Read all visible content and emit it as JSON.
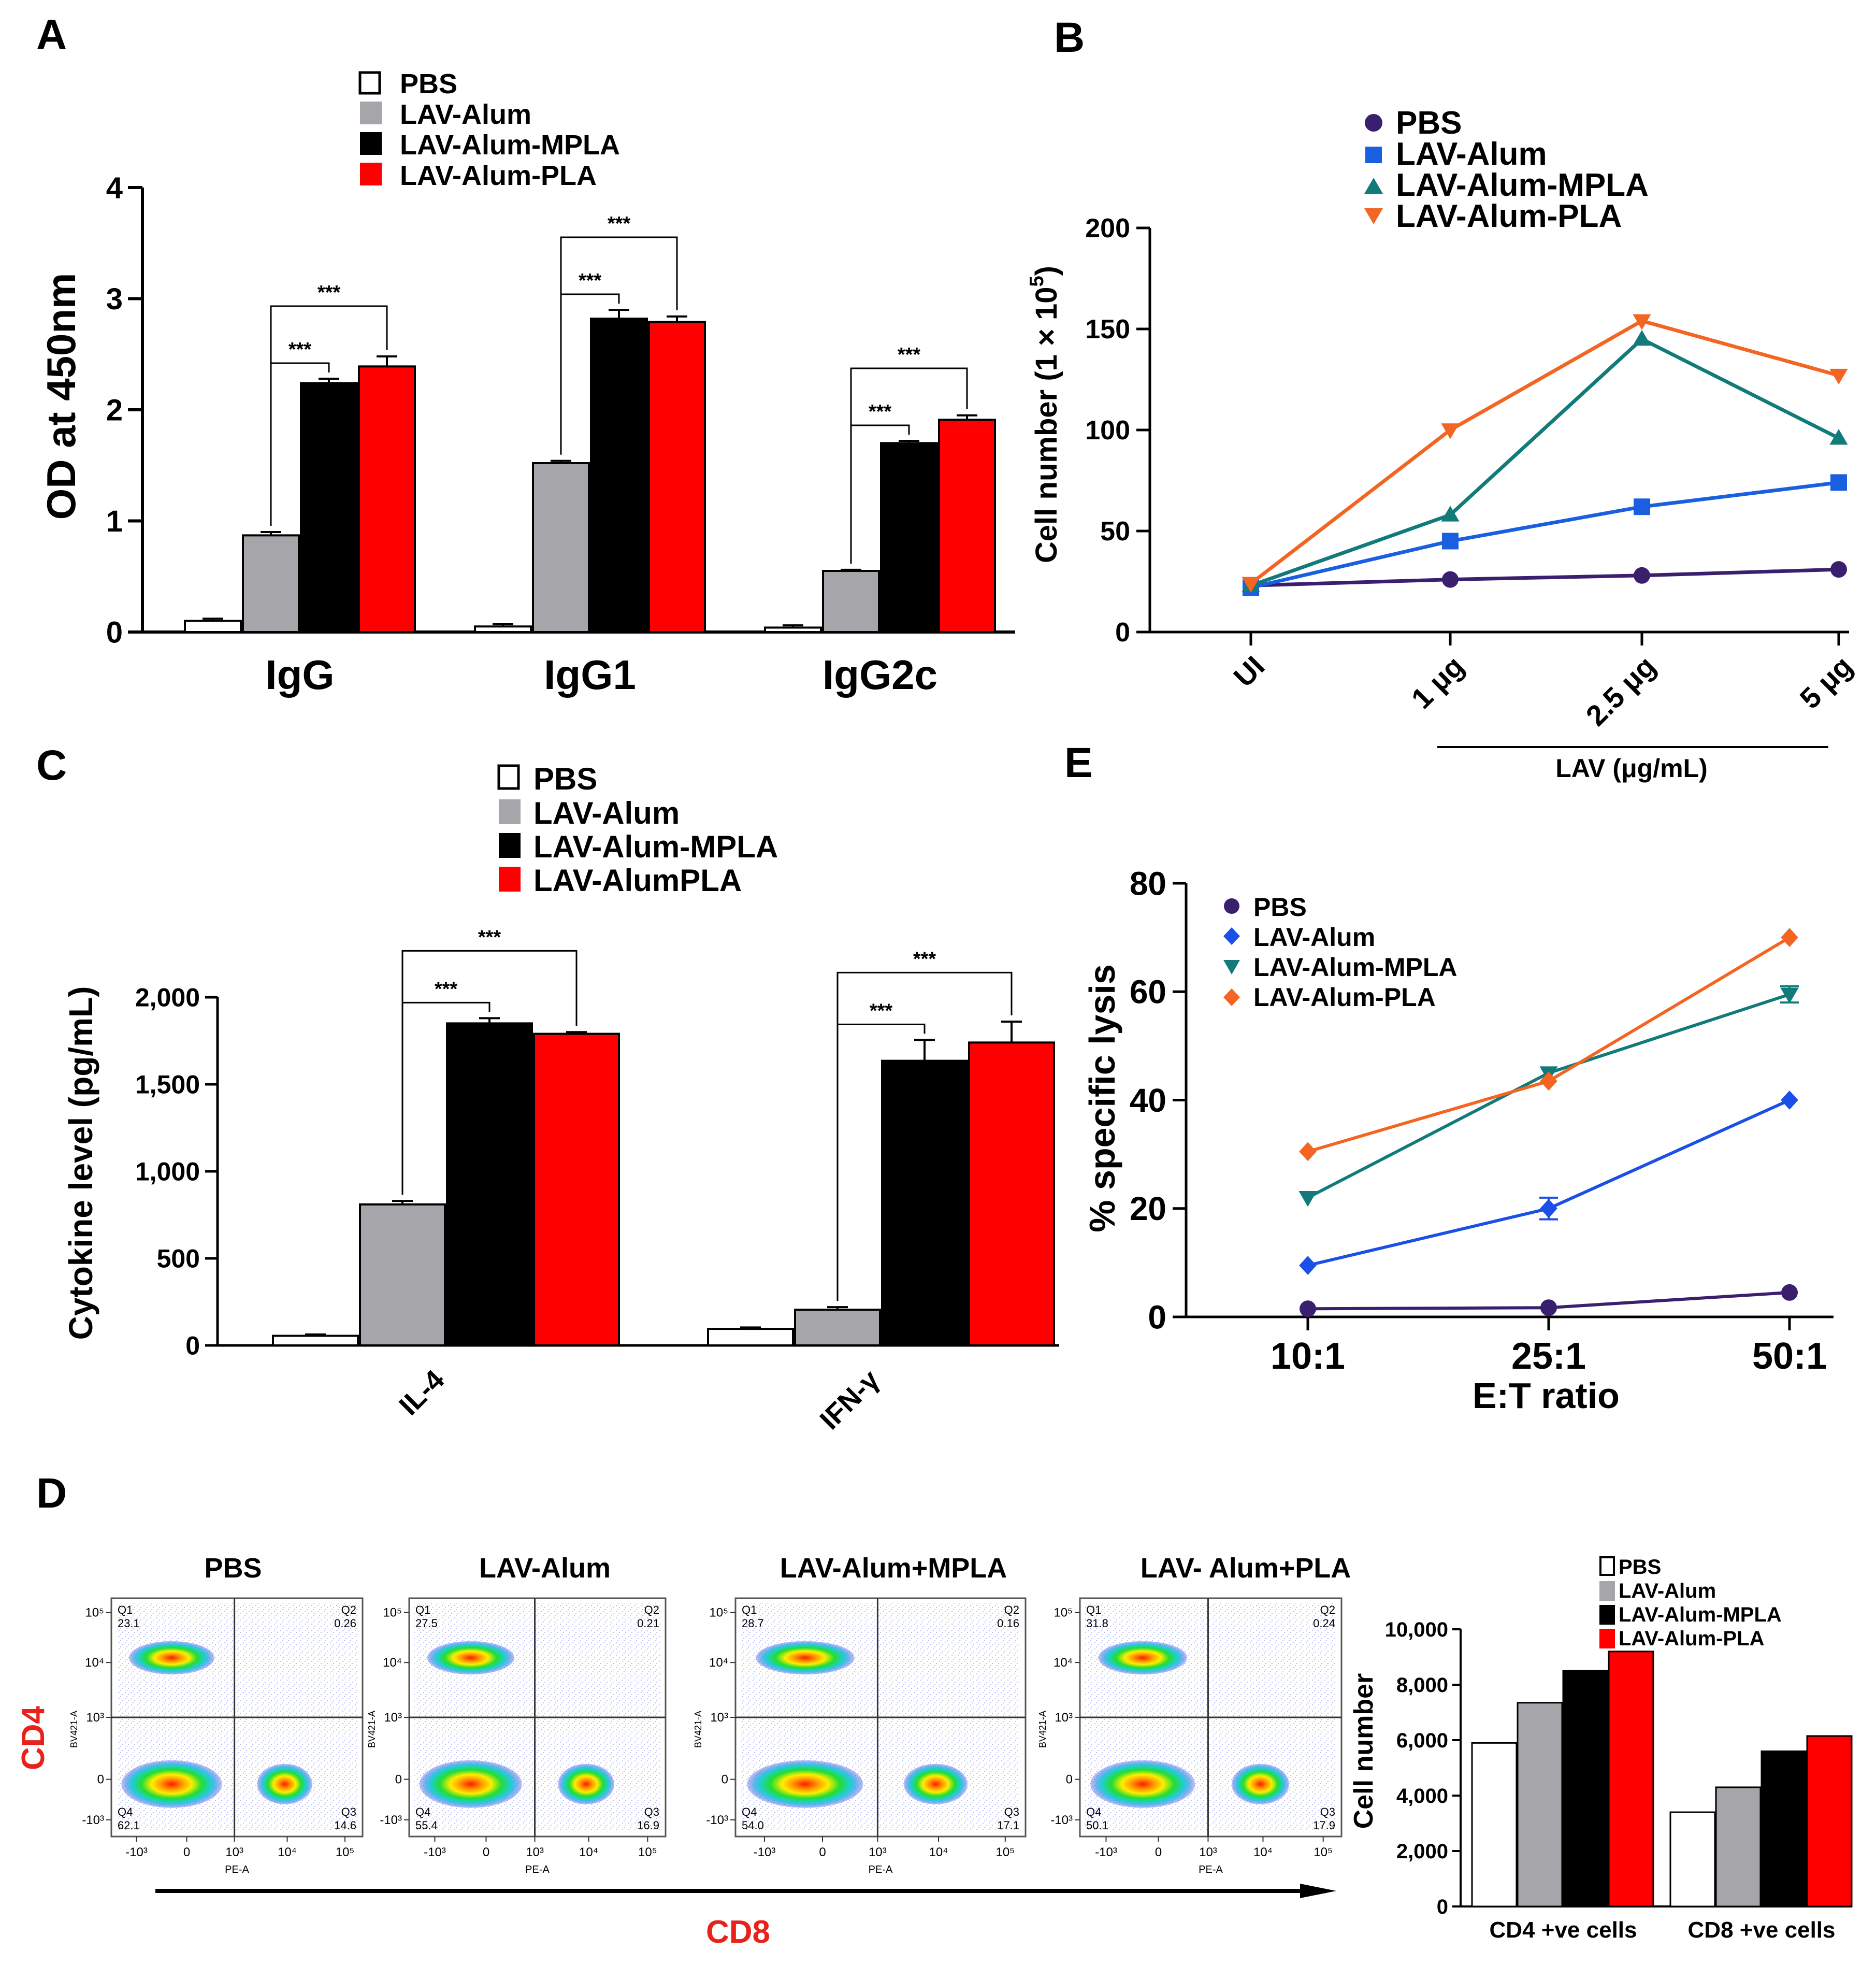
{
  "colors": {
    "pbs": "#ffffff",
    "alum": "#a5a5aa",
    "mpla": "#000000",
    "pla": "#ff0000",
    "line_pbs": "#3a1f6e",
    "line_alum_b": "#1a5fe0",
    "line_alum_e": "#1a4fe8",
    "line_mpla": "#137a7a",
    "line_pla": "#f26522",
    "flow_axis_title": "#e8221b"
  },
  "panelA": {
    "letter": "A",
    "ylabel": "OD at 450nm",
    "ylim": [
      0,
      4
    ],
    "yticks": [
      "0",
      "1",
      "2",
      "3",
      "4"
    ],
    "legend": [
      "PBS",
      "LAV-Alum",
      "LAV-Alum-MPLA",
      "LAV-Alum-PLA"
    ],
    "sig": "***"
  },
  "panelB": {
    "letter": "B",
    "ylabel": "Cell number (1 × 10",
    "ylabel_sup": "5",
    "ylabel_close": ")",
    "ylim": [
      0,
      200
    ],
    "yticks": [
      "0",
      "50",
      "100",
      "150",
      "200"
    ],
    "xticks": [
      "UI",
      "1 μg",
      "2.5 μg",
      "5 μg"
    ],
    "bracket_label": "LAV (μg/mL)",
    "legend": [
      "PBS",
      "LAV-Alum",
      "LAV-Alum-MPLA",
      "LAV-Alum-PLA"
    ]
  },
  "panelC": {
    "letter": "C",
    "ylabel": "Cytokine level (pg/mL)",
    "ylim": [
      0,
      2000
    ],
    "yticks": [
      "0",
      "500",
      "1,000",
      "1,500",
      "2,000"
    ],
    "legend": [
      "PBS",
      "LAV-Alum",
      "LAV-Alum-MPLA",
      "LAV-AlumPLA"
    ],
    "sig": "***"
  },
  "panelE": {
    "letter": "E",
    "ylabel": "% specific lysis",
    "xlabel": "E:T ratio",
    "ylim": [
      0,
      80
    ],
    "yticks": [
      "0",
      "20",
      "40",
      "60",
      "80"
    ],
    "xticks": [
      "10:1",
      "25:1",
      "50:1"
    ],
    "legend": [
      "PBS",
      "LAV-Alum",
      "LAV-Alum-MPLA",
      "LAV-Alum-PLA"
    ]
  },
  "panelD": {
    "letter": "D",
    "titles": [
      "PBS",
      "LAV-Alum",
      "LAV-Alum+MPLA",
      "LAV- Alum+PLA"
    ],
    "y_axis_title": "CD4",
    "x_axis_title": "CD8",
    "plot_xlabel": "PE-A",
    "plot_ylabel": "BV421-A",
    "x_ticks": [
      "-10³",
      "0",
      "10³",
      "10⁴",
      "10⁵"
    ],
    "y_ticks": [
      "10⁵",
      "10⁴",
      "10³",
      "0",
      "-10³"
    ],
    "quadrant_names": [
      "Q1",
      "Q2",
      "Q3",
      "Q4"
    ],
    "quadrants": [
      {
        "q1": "23.1",
        "q2": "0.26",
        "q3": "14.6",
        "q4": "62.1"
      },
      {
        "q1": "27.5",
        "q2": "0.21",
        "q3": "16.9",
        "q4": "55.4"
      },
      {
        "q1": "28.7",
        "q2": "0.16",
        "q3": "17.1",
        "q4": "54.0"
      },
      {
        "q1": "31.8",
        "q2": "0.24",
        "q3": "17.9",
        "q4": "50.1"
      }
    ]
  },
  "panelD_bar": {
    "ylabel": "Cell number",
    "ylim": [
      0,
      10000
    ],
    "yticks": [
      "0",
      "2,000",
      "4,000",
      "6,000",
      "8,000",
      "10,000"
    ],
    "legend": [
      "PBS",
      "LAV-Alum",
      "LAV-Alum-MPLA",
      "LAV-Alum-PLA"
    ]
  },
  "chart_data": [
    {
      "panel": "A",
      "type": "bar",
      "categories": [
        "IgG",
        "IgG1",
        "IgG2c"
      ],
      "ylabel": "OD at 450nm",
      "ylim": [
        0,
        4
      ],
      "series": [
        {
          "name": "PBS",
          "values": [
            0.1,
            0.05,
            0.04
          ],
          "errors": [
            0.02,
            0.02,
            0.02
          ]
        },
        {
          "name": "LAV-Alum",
          "values": [
            0.87,
            1.52,
            0.55
          ],
          "errors": [
            0.03,
            0.02,
            0.01
          ]
        },
        {
          "name": "LAV-Alum-MPLA",
          "values": [
            2.24,
            2.82,
            1.7
          ],
          "errors": [
            0.04,
            0.08,
            0.02
          ]
        },
        {
          "name": "LAV-Alum-PLA",
          "values": [
            2.39,
            2.79,
            1.91
          ],
          "errors": [
            0.09,
            0.05,
            0.04
          ]
        }
      ],
      "significance": [
        {
          "category": "IgG",
          "from": "LAV-Alum",
          "to": "LAV-Alum-MPLA",
          "label": "***"
        },
        {
          "category": "IgG",
          "from": "LAV-Alum",
          "to": "LAV-Alum-PLA",
          "label": "***"
        },
        {
          "category": "IgG1",
          "from": "LAV-Alum",
          "to": "LAV-Alum-MPLA",
          "label": "***"
        },
        {
          "category": "IgG1",
          "from": "LAV-Alum",
          "to": "LAV-Alum-PLA",
          "label": "***"
        },
        {
          "category": "IgG2c",
          "from": "LAV-Alum",
          "to": "LAV-Alum-MPLA",
          "label": "***"
        },
        {
          "category": "IgG2c",
          "from": "LAV-Alum",
          "to": "LAV-Alum-PLA",
          "label": "***"
        }
      ]
    },
    {
      "panel": "B",
      "type": "line",
      "x": [
        "UI",
        "1 μg",
        "2.5 μg",
        "5 μg"
      ],
      "xlabel": "LAV (μg/mL)",
      "ylabel": "Cell number (1 × 10^5)",
      "ylim": [
        0,
        200
      ],
      "series": [
        {
          "name": "PBS",
          "marker": "circle",
          "values": [
            23,
            26,
            28,
            31
          ]
        },
        {
          "name": "LAV-Alum",
          "marker": "square",
          "values": [
            22,
            45,
            62,
            74
          ]
        },
        {
          "name": "LAV-Alum-MPLA",
          "marker": "triangle-up",
          "values": [
            23,
            58,
            145,
            96
          ]
        },
        {
          "name": "LAV-Alum-PLA",
          "marker": "triangle-down",
          "values": [
            24,
            100,
            154,
            127
          ]
        }
      ]
    },
    {
      "panel": "C",
      "type": "bar",
      "categories": [
        "IL-4",
        "IFN-γ"
      ],
      "ylabel": "Cytokine level (pg/mL)",
      "ylim": [
        0,
        2000
      ],
      "series": [
        {
          "name": "PBS",
          "values": [
            55,
            95
          ],
          "errors": [
            8,
            8
          ]
        },
        {
          "name": "LAV-Alum",
          "values": [
            810,
            205
          ],
          "errors": [
            20,
            15
          ]
        },
        {
          "name": "LAV-Alum-MPLA",
          "values": [
            1850,
            1635
          ],
          "errors": [
            30,
            120
          ]
        },
        {
          "name": "LAV-AlumPLA",
          "values": [
            1790,
            1740
          ],
          "errors": [
            10,
            120
          ]
        }
      ],
      "significance": [
        {
          "category": "IL-4",
          "from": "LAV-Alum",
          "to": "LAV-Alum-MPLA",
          "label": "***"
        },
        {
          "category": "IL-4",
          "from": "LAV-Alum",
          "to": "LAV-AlumPLA",
          "label": "***"
        },
        {
          "category": "IFN-γ",
          "from": "LAV-Alum",
          "to": "LAV-Alum-MPLA",
          "label": "***"
        },
        {
          "category": "IFN-γ",
          "from": "LAV-Alum",
          "to": "LAV-AlumPLA",
          "label": "***"
        }
      ]
    },
    {
      "panel": "E",
      "type": "line",
      "x": [
        "10:1",
        "25:1",
        "50:1"
      ],
      "xlabel": "E:T ratio",
      "ylabel": "% specific lysis",
      "ylim": [
        0,
        80
      ],
      "series": [
        {
          "name": "PBS",
          "marker": "circle",
          "values": [
            1.5,
            1.7,
            4.5
          ],
          "errors": [
            0,
            0,
            0
          ]
        },
        {
          "name": "LAV-Alum",
          "marker": "diamond",
          "values": [
            9.5,
            20,
            40
          ],
          "errors": [
            0,
            2,
            0
          ]
        },
        {
          "name": "LAV-Alum-MPLA",
          "marker": "triangle-down",
          "values": [
            22,
            45,
            59.5
          ],
          "errors": [
            0,
            0,
            1.5
          ]
        },
        {
          "name": "LAV-Alum-PLA",
          "marker": "diamond",
          "values": [
            30.5,
            43.5,
            70
          ],
          "errors": [
            0,
            0,
            0
          ]
        }
      ]
    },
    {
      "panel": "D",
      "type": "bar",
      "categories": [
        "CD4 +ve cells",
        "CD8 +ve cells"
      ],
      "ylabel": "Cell number",
      "ylim": [
        0,
        10000
      ],
      "series": [
        {
          "name": "PBS",
          "values": [
            5900,
            3400
          ]
        },
        {
          "name": "LAV-Alum",
          "values": [
            7350,
            4300
          ]
        },
        {
          "name": "LAV-Alum-MPLA",
          "values": [
            8500,
            5600
          ]
        },
        {
          "name": "LAV-Alum-PLA",
          "values": [
            9200,
            6150
          ]
        }
      ]
    }
  ]
}
